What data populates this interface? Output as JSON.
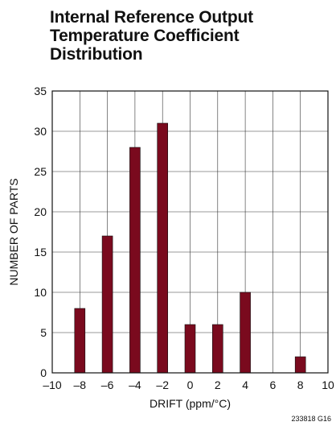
{
  "chart_data": {
    "type": "bar",
    "title_lines": [
      "Internal Reference Output",
      "Temperature Coefficient",
      "Distribution"
    ],
    "xlabel": "DRIFT (ppm/°C)",
    "ylabel": "NUMBER OF PARTS",
    "x_ticks": [
      "–10",
      "–8",
      "–6",
      "–4",
      "–2",
      "0",
      "2",
      "4",
      "6",
      "8",
      "10"
    ],
    "y_ticks": [
      "0",
      "5",
      "10",
      "15",
      "20",
      "25",
      "30",
      "35"
    ],
    "xlim": [
      -10,
      10
    ],
    "ylim": [
      0,
      35
    ],
    "grid": true,
    "bar_color": "#7a0a1e",
    "bars": [
      {
        "x": -8,
        "value": 8
      },
      {
        "x": -6,
        "value": 17
      },
      {
        "x": -4,
        "value": 28
      },
      {
        "x": -2,
        "value": 31
      },
      {
        "x": 0,
        "value": 6
      },
      {
        "x": 2,
        "value": 6
      },
      {
        "x": 4,
        "value": 10
      },
      {
        "x": 8,
        "value": 2
      }
    ],
    "figure_id": "233818 G16"
  }
}
